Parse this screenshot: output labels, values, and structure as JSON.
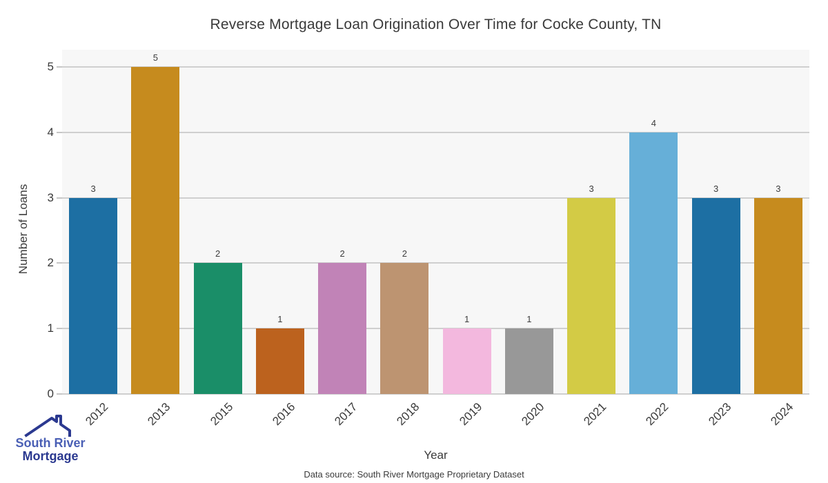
{
  "title": "Reverse Mortgage Loan Origination Over Time for Cocke County, TN",
  "chart_data": {
    "type": "bar",
    "title": "Reverse Mortgage Loan Origination Over Time for Cocke County, TN",
    "categories": [
      "2012",
      "2013",
      "2015",
      "2016",
      "2017",
      "2018",
      "2019",
      "2020",
      "2021",
      "2022",
      "2023",
      "2024"
    ],
    "values": [
      3,
      5,
      2,
      1,
      2,
      2,
      1,
      1,
      3,
      4,
      3,
      3
    ],
    "bar_colors": [
      "#1d6fa3",
      "#c68b1e",
      "#1a8e68",
      "#bc621e",
      "#c183b7",
      "#bd9471",
      "#f3b8de",
      "#989898",
      "#d3cb45",
      "#66afd8",
      "#1d6fa3",
      "#c68b1e"
    ],
    "xlabel": "Year",
    "ylabel": "Number of Loans",
    "ylim": [
      0,
      5
    ],
    "yticks": [
      0,
      1,
      2,
      3,
      4,
      5
    ],
    "grid": true,
    "legend": "none",
    "plot_background": "#f7f7f7",
    "gridline_color": "#cfcfcf",
    "value_labels_shown": true
  },
  "footer": {
    "data_source": "Data source: South River Mortgage Proprietary Dataset"
  },
  "logo": {
    "line1": "South River",
    "line2": "Mortgage",
    "line1_color": "#4a5fb5",
    "line2_color": "#2b3990",
    "roof_color": "#2b3990",
    "roof_icon": "house-roof-icon"
  }
}
